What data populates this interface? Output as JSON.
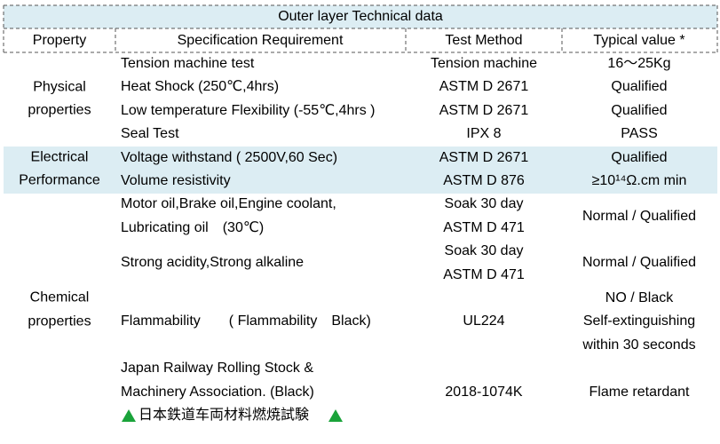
{
  "title": "Outer layer Technical data",
  "headers": [
    "Property",
    "Specification Requirement",
    "Test Method",
    "Typical value *"
  ],
  "groups": [
    {
      "property": "Physical properties",
      "rows": [
        {
          "spec": "Tension machine test",
          "method": "Tension machine",
          "value": "16～25Kg"
        },
        {
          "spec": "Heat Shock (250℃,4hrs)",
          "method": "ASTM D 2671",
          "value": "Qualified"
        },
        {
          "spec": "Low temperature Flexibility (-55℃,4hrs )",
          "method": "ASTM D 2671",
          "value": "Qualified"
        },
        {
          "spec": "Seal Test",
          "method": "IPX 8",
          "value": "PASS"
        }
      ]
    },
    {
      "property": "Electrical Performance",
      "rows": [
        {
          "spec": "Voltage withstand ( 2500V,60 Sec)",
          "method": "ASTM D 2671",
          "value": "Qualified"
        },
        {
          "spec": "Volume resistivity",
          "method": "ASTM D 876",
          "value": "≥10¹⁴Ω.cm min"
        }
      ]
    },
    {
      "property": "Chemical properties",
      "rows": [
        {
          "spec": [
            "Motor oil,Brake oil,Engine coolant,",
            "Lubricating oil　(30℃)"
          ],
          "method": [
            "Soak 30 day",
            "ASTM D 471"
          ],
          "value": "Normal / Qualified"
        },
        {
          "spec": "Strong acidity,Strong alkaline",
          "method": [
            "Soak 30 day",
            "ASTM D 471"
          ],
          "value": "Normal / Qualified"
        },
        {
          "spec": "Flammability　　( Flammability　Black)",
          "method": "UL224",
          "value": [
            "NO / Black",
            "Self-extinguishing",
            "within 30 seconds"
          ]
        },
        {
          "spec": [
            "Japan Railway Rolling Stock &",
            "Machinery Association. (Black)",
            "日本鉄道车両材料燃焼試験"
          ],
          "method": "2018-1074K",
          "value": "Flame retardant"
        }
      ]
    }
  ]
}
